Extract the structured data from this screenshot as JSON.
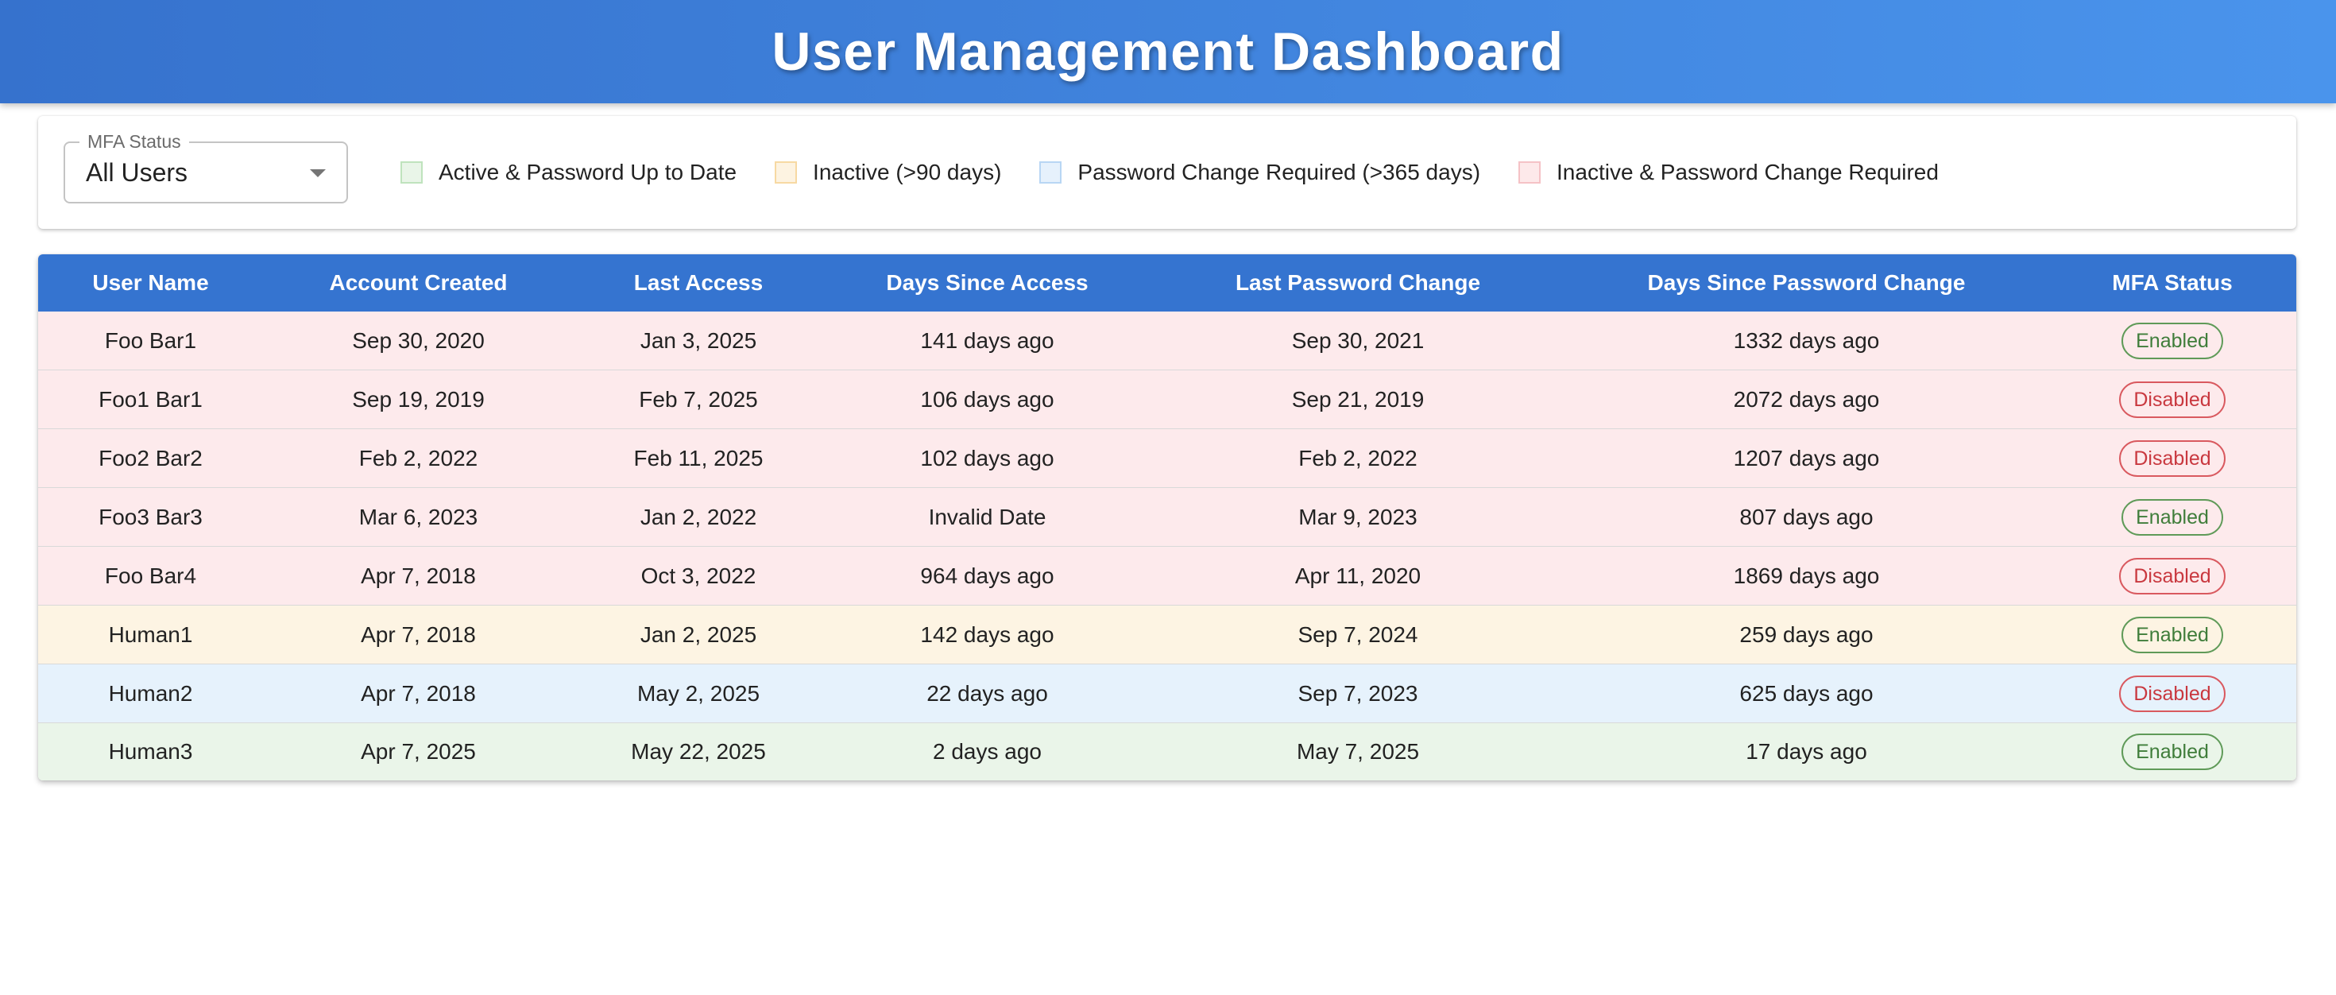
{
  "header": {
    "title": "User Management Dashboard"
  },
  "filter": {
    "label": "MFA Status",
    "value": "All Users",
    "options": [
      "All Users"
    ]
  },
  "legend": [
    {
      "label": "Active & Password Up to Date",
      "fill": "#e9f5e8",
      "border": "#bfe3bd"
    },
    {
      "label": "Inactive (>90 days)",
      "fill": "#fdf3e1",
      "border": "#f7d9a3"
    },
    {
      "label": "Password Change Required (>365 days)",
      "fill": "#e6f1fc",
      "border": "#b8d6f4"
    },
    {
      "label": "Inactive & Password Change Required",
      "fill": "#fde9ea",
      "border": "#f5c2c6"
    }
  ],
  "table": {
    "columns": [
      "User Name",
      "Account Created",
      "Last Access",
      "Days Since Access",
      "Last Password Change",
      "Days Since Password Change",
      "MFA Status"
    ],
    "rows": [
      {
        "cells": [
          "Foo Bar1",
          "Sep 30, 2020",
          "Jan 3, 2025",
          "141 days ago",
          "Sep 30, 2021",
          "1332 days ago"
        ],
        "mfa": "Enabled",
        "status": 3
      },
      {
        "cells": [
          "Foo1 Bar1",
          "Sep 19, 2019",
          "Feb 7, 2025",
          "106 days ago",
          "Sep 21, 2019",
          "2072 days ago"
        ],
        "mfa": "Disabled",
        "status": 3
      },
      {
        "cells": [
          "Foo2 Bar2",
          "Feb 2, 2022",
          "Feb 11, 2025",
          "102 days ago",
          "Feb 2, 2022",
          "1207 days ago"
        ],
        "mfa": "Disabled",
        "status": 3
      },
      {
        "cells": [
          "Foo3 Bar3",
          "Mar 6, 2023",
          "Jan 2, 2022",
          "Invalid Date",
          "Mar 9, 2023",
          "807 days ago"
        ],
        "mfa": "Enabled",
        "status": 3
      },
      {
        "cells": [
          "Foo Bar4",
          "Apr 7, 2018",
          "Oct 3, 2022",
          "964 days ago",
          "Apr 11, 2020",
          "1869 days ago"
        ],
        "mfa": "Disabled",
        "status": 3
      },
      {
        "cells": [
          "Human1",
          "Apr 7, 2018",
          "Jan 2, 2025",
          "142 days ago",
          "Sep 7, 2024",
          "259 days ago"
        ],
        "mfa": "Enabled",
        "status": 1
      },
      {
        "cells": [
          "Human2",
          "Apr 7, 2018",
          "May 2, 2025",
          "22 days ago",
          "Sep 7, 2023",
          "625 days ago"
        ],
        "mfa": "Disabled",
        "status": 2
      },
      {
        "cells": [
          "Human3",
          "Apr 7, 2025",
          "May 22, 2025",
          "2 days ago",
          "May 7, 2025",
          "17 days ago"
        ],
        "mfa": "Enabled",
        "status": 0
      }
    ]
  },
  "row_colors": [
    "#eaf5e9",
    "#fdf4e3",
    "#e6f2fc",
    "#fdeaec"
  ],
  "mfa_colors": {
    "Enabled": {
      "text": "#3f7d3a",
      "border": "#5f9a58"
    },
    "Disabled": {
      "text": "#c9383f",
      "border": "#d9595f"
    }
  }
}
